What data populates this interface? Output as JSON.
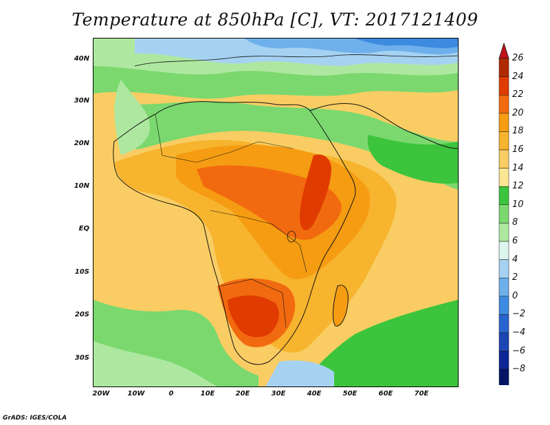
{
  "title": "Temperature at 850hPa [C], VT: 2017121409",
  "credit": "GrADS: IGES/COLA",
  "axes": {
    "lat_labels": [
      "40N",
      "30N",
      "20N",
      "10N",
      "EQ",
      "10S",
      "20S",
      "30S"
    ],
    "lat_values": [
      40,
      30,
      20,
      10,
      0,
      -10,
      -20,
      -30
    ],
    "lon_labels": [
      "20W",
      "10W",
      "0",
      "10E",
      "20E",
      "30E",
      "40E",
      "50E",
      "60E",
      "70E"
    ],
    "lon_values": [
      -20,
      -10,
      0,
      10,
      20,
      30,
      40,
      50,
      60,
      70
    ],
    "lon_range": [
      -22,
      80
    ],
    "lat_range": [
      -36.5,
      45
    ]
  },
  "colorbar": {
    "levels": [
      "26",
      "24",
      "22",
      "20",
      "18",
      "16",
      "14",
      "12",
      "10",
      "8",
      "6",
      "4",
      "2",
      "0",
      "−2",
      "−4",
      "−6",
      "−8"
    ],
    "colors": [
      "#b02a00",
      "#e03b00",
      "#f26a10",
      "#f59c12",
      "#f7b42e",
      "#f9cd63",
      "#fbe793",
      "#3cc43c",
      "#7bd86e",
      "#aee8a0",
      "#def5ef",
      "#a6d2f2",
      "#6eb0eb",
      "#3d8be0",
      "#2a64cf",
      "#1c46b4",
      "#0e2796",
      "#061466"
    ],
    "top_color": "#c0121a",
    "bottom_color": "#d8d4f2"
  },
  "chart_data": {
    "type": "heatmap",
    "title": "Temperature at 850hPa [C], VT: 2017121409",
    "units": "C",
    "x": [
      -20,
      -10,
      0,
      10,
      20,
      30,
      40,
      50,
      60,
      70
    ],
    "y": [
      40,
      30,
      20,
      10,
      0,
      -10,
      -20,
      -30
    ],
    "xlim": [
      -22,
      80
    ],
    "ylim": [
      -36.5,
      45
    ],
    "levels": [
      -8,
      -6,
      -4,
      -2,
      0,
      2,
      4,
      6,
      8,
      10,
      12,
      14,
      16,
      18,
      20,
      22,
      24,
      26
    ]
  }
}
